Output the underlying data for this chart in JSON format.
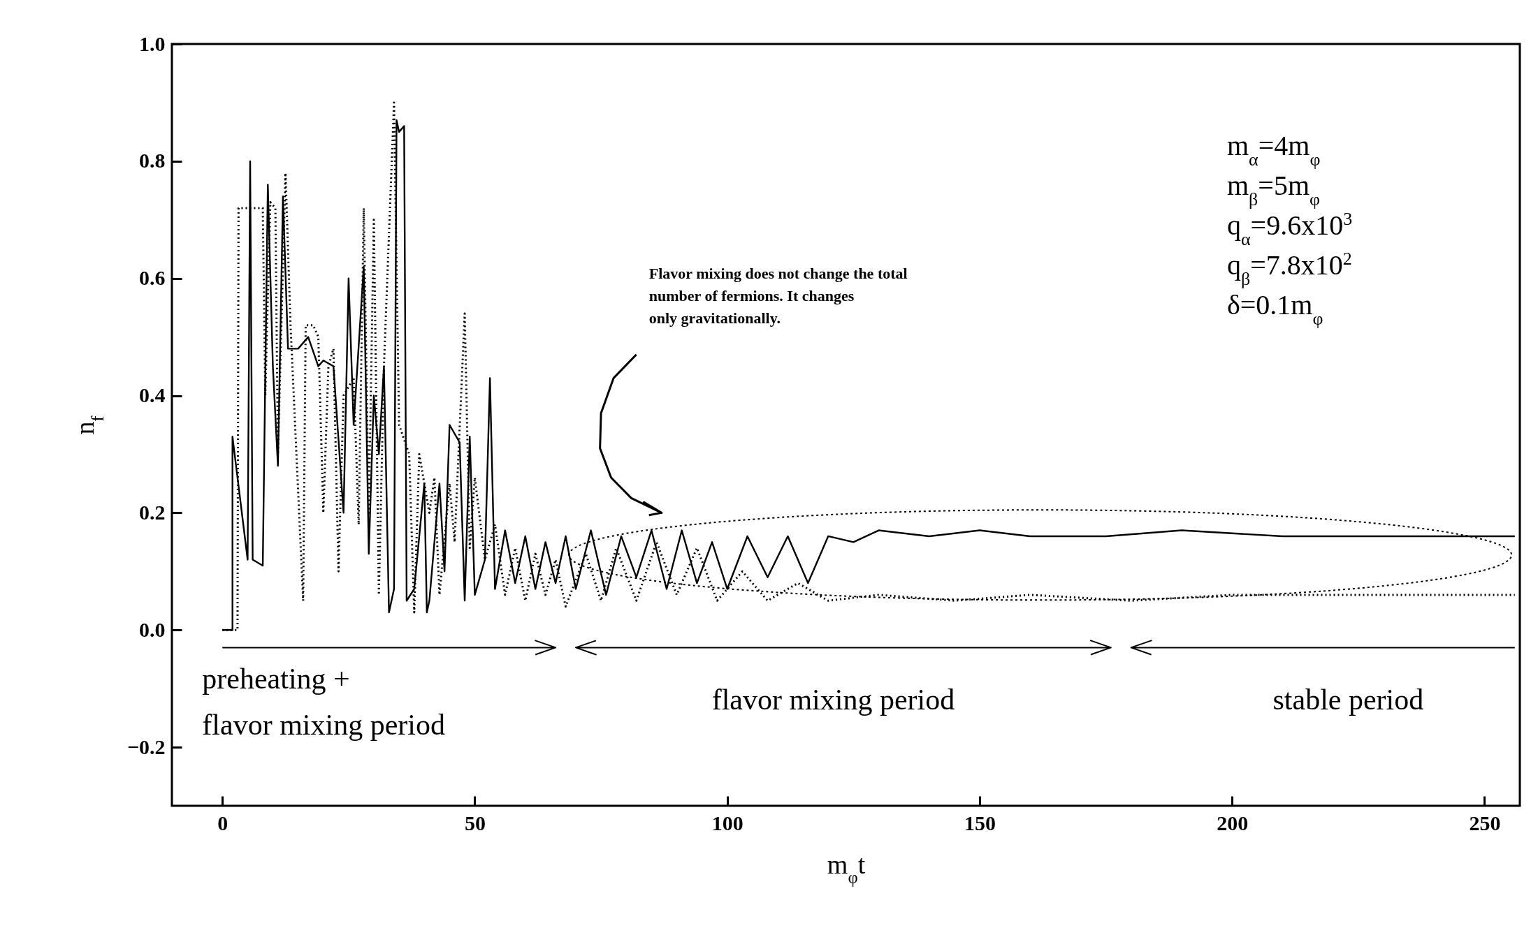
{
  "chart_data": {
    "type": "line",
    "xlabel": "m$_{φ}$t",
    "ylabel": "n$_{f}$",
    "xlim": [
      -10,
      257
    ],
    "ylim": [
      -0.3,
      1.0
    ],
    "xticks": [
      0,
      50,
      100,
      150,
      200,
      250
    ],
    "yticks": [
      {
        "value": -0.2,
        "label": "−0.2"
      },
      {
        "value": 0,
        "label": "0.0"
      },
      0.2,
      0.4,
      0.6,
      0.8,
      {
        "value": 1,
        "label": "1.0"
      }
    ],
    "grid": false,
    "series": [
      {
        "color": "#000000",
        "line_style": "solid",
        "x": [
          0,
          2,
          2,
          5,
          5.5,
          6,
          8,
          9,
          10,
          11,
          12,
          13,
          15,
          17,
          19,
          20,
          22,
          24,
          25,
          26,
          28,
          29,
          30,
          31,
          32,
          33,
          34,
          34.5,
          35,
          36,
          36.5,
          38,
          40,
          40.5,
          41,
          43,
          44,
          45,
          47,
          48,
          49,
          50,
          52,
          53,
          54,
          56,
          58,
          60,
          62,
          64,
          66,
          68,
          70,
          73,
          76,
          79,
          82,
          85,
          88,
          91,
          94,
          97,
          100,
          104,
          108,
          112,
          116,
          120,
          125,
          130,
          140,
          150,
          160,
          175,
          190,
          210,
          230,
          256
        ],
        "values": [
          0.0,
          0.0,
          0.33,
          0.12,
          0.8,
          0.12,
          0.11,
          0.76,
          0.45,
          0.28,
          0.74,
          0.48,
          0.48,
          0.5,
          0.45,
          0.46,
          0.45,
          0.2,
          0.6,
          0.35,
          0.62,
          0.13,
          0.4,
          0.3,
          0.45,
          0.03,
          0.07,
          0.87,
          0.85,
          0.86,
          0.05,
          0.07,
          0.25,
          0.03,
          0.05,
          0.25,
          0.1,
          0.35,
          0.32,
          0.05,
          0.33,
          0.06,
          0.12,
          0.43,
          0.07,
          0.17,
          0.08,
          0.16,
          0.07,
          0.15,
          0.08,
          0.16,
          0.07,
          0.17,
          0.06,
          0.16,
          0.09,
          0.17,
          0.07,
          0.17,
          0.08,
          0.15,
          0.07,
          0.16,
          0.09,
          0.16,
          0.08,
          0.16,
          0.15,
          0.17,
          0.16,
          0.17,
          0.16,
          0.16,
          0.17,
          0.16,
          0.16,
          0.16
        ]
      },
      {
        "color": "#000000",
        "line_style": "dotted",
        "x": [
          0,
          3,
          3.2,
          8,
          8.5,
          9.5,
          10.5,
          11,
          12.5,
          13.5,
          16,
          16.5,
          18,
          19,
          20,
          21,
          22,
          23,
          24,
          26,
          27,
          28,
          29,
          30,
          31,
          32,
          34,
          35,
          37,
          38,
          39,
          41,
          42,
          43,
          45,
          46,
          48,
          49,
          50,
          52,
          54,
          56,
          58,
          60,
          62,
          64,
          66,
          68,
          72,
          75,
          78,
          82,
          86,
          90,
          94,
          98,
          103,
          108,
          114,
          120,
          130,
          145,
          160,
          180,
          200,
          230,
          256
        ],
        "values": [
          0.0,
          0.0,
          0.72,
          0.72,
          0.4,
          0.73,
          0.72,
          0.3,
          0.78,
          0.52,
          0.05,
          0.52,
          0.52,
          0.5,
          0.2,
          0.45,
          0.48,
          0.1,
          0.4,
          0.43,
          0.18,
          0.72,
          0.2,
          0.7,
          0.06,
          0.45,
          0.9,
          0.35,
          0.3,
          0.03,
          0.3,
          0.2,
          0.26,
          0.06,
          0.25,
          0.15,
          0.54,
          0.14,
          0.26,
          0.12,
          0.18,
          0.06,
          0.14,
          0.05,
          0.13,
          0.06,
          0.12,
          0.04,
          0.13,
          0.05,
          0.14,
          0.05,
          0.15,
          0.06,
          0.14,
          0.05,
          0.1,
          0.05,
          0.08,
          0.05,
          0.06,
          0.05,
          0.06,
          0.05,
          0.06,
          0.06,
          0.06
        ]
      }
    ],
    "annotations": [
      "preheating +\nflavor mixing period",
      "flavor mixing period",
      "stable period",
      "Flavor mixing does not change the total\nnumber of fermions. It changes\nonly gravitationally.",
      "m$_{α}$=4m$_{φ}$\nm$_{β}$=5m$_{φ}$\nq$_{α}$=9.6x10$^{3}$\nq$_{β}$=7.8x10$^{2}$\nδ=0.1m$_{φ}$"
    ]
  }
}
